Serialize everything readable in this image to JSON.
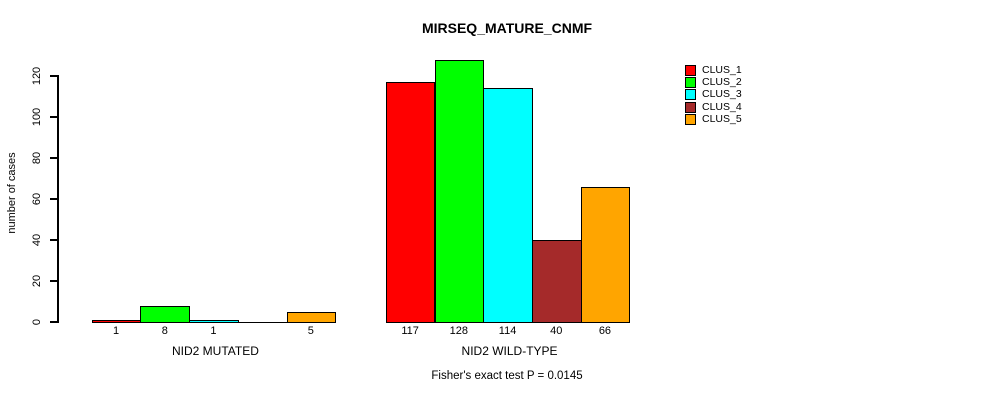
{
  "title": "MIRSEQ_MATURE_CNMF",
  "ylabel": "number of cases",
  "footer": "Fisher's exact test P = 0.0145",
  "chart_data": {
    "type": "bar",
    "title": "MIRSEQ_MATURE_CNMF",
    "xlabel": "",
    "ylabel": "number of cases",
    "ylim": [
      0,
      128
    ],
    "yticks": [
      0,
      20,
      40,
      60,
      80,
      100,
      120
    ],
    "categories": [
      "NID2 MUTATED",
      "NID2 WILD-TYPE"
    ],
    "series": [
      {
        "name": "CLUS_1",
        "color": "#ff0000",
        "values": [
          1,
          117
        ]
      },
      {
        "name": "CLUS_2",
        "color": "#00ff00",
        "values": [
          8,
          128
        ]
      },
      {
        "name": "CLUS_3",
        "color": "#00ffff",
        "values": [
          1,
          114
        ]
      },
      {
        "name": "CLUS_4",
        "color": "#a52a2a",
        "values": [
          0,
          40
        ]
      },
      {
        "name": "CLUS_5",
        "color": "#ffa500",
        "values": [
          5,
          66
        ]
      }
    ],
    "bar_labels": [
      [
        "1",
        "8",
        "1",
        "",
        "5"
      ],
      [
        "117",
        "128",
        "114",
        "40",
        "66"
      ]
    ],
    "legend": [
      "CLUS_1",
      "CLUS_2",
      "CLUS_3",
      "CLUS_4",
      "CLUS_5"
    ],
    "legend_position": "topright",
    "grid": false,
    "annotation": "Fisher's exact test P = 0.0145"
  }
}
